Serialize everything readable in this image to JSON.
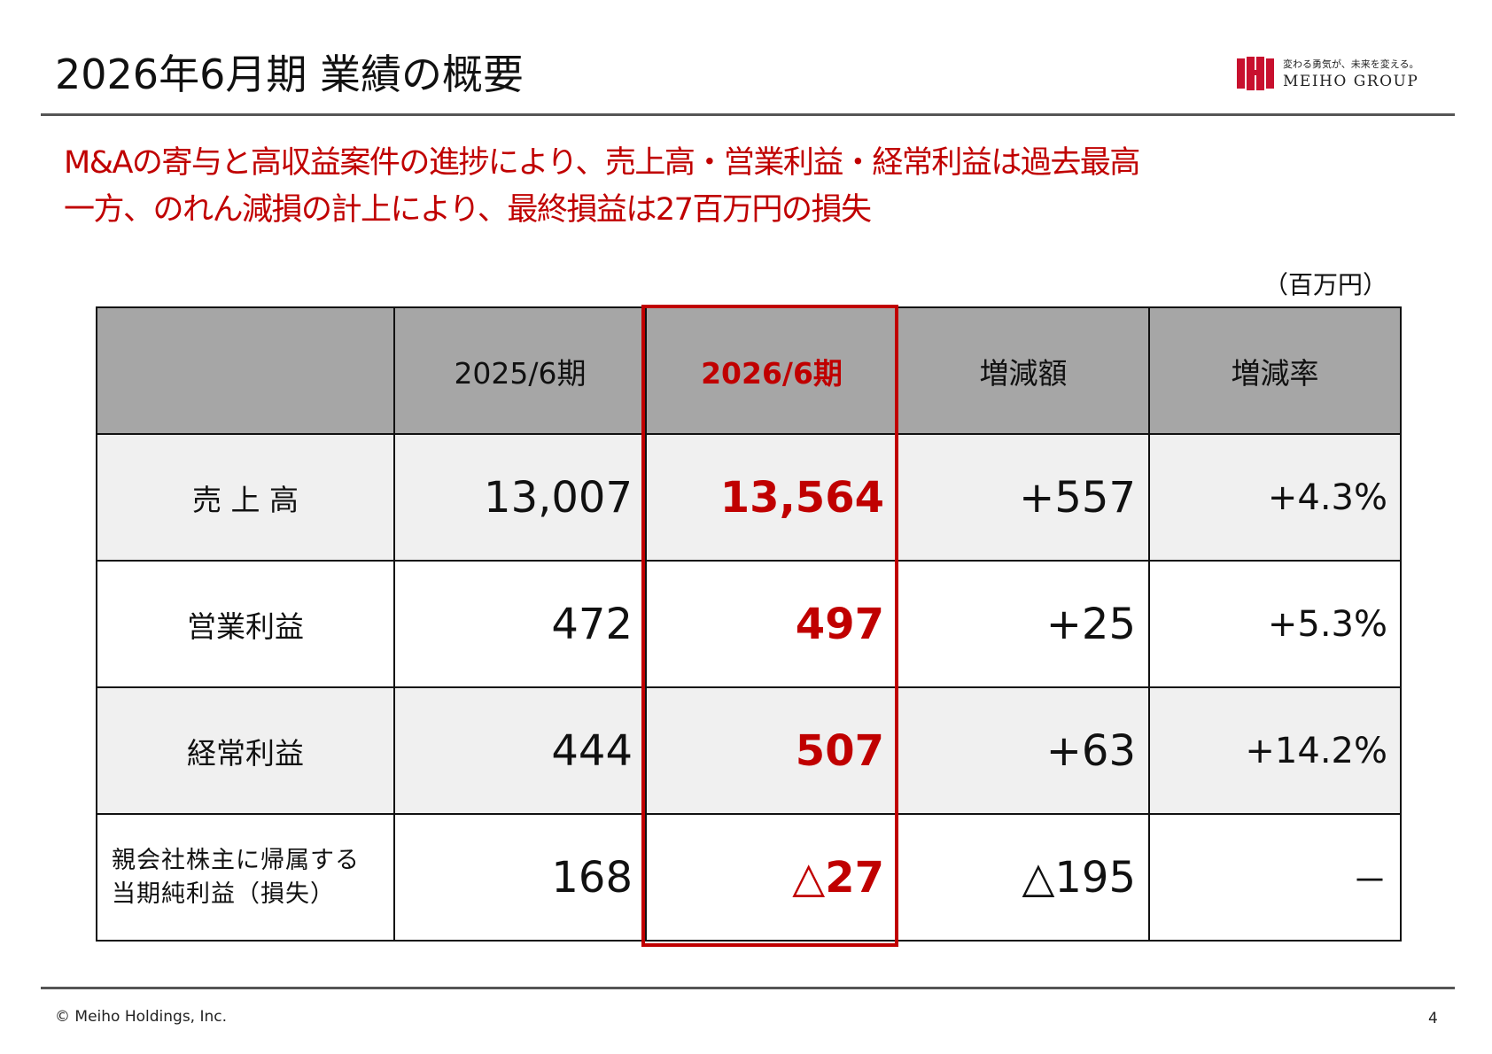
{
  "slide": {
    "title": "2026年6月期 業績の概要",
    "headline_line1": "M&Aの寄与と高収益案件の進捗により、売上高・営業利益・経常利益は過去最高",
    "headline_line2": "一方、のれん減損の計上により、最終損益は27百万円の損失",
    "unit": "（百万円）"
  },
  "logo": {
    "tagline": "変わる勇気が、未来を変える。",
    "name": "MEIHO GROUP",
    "brand_color": "#c8102e"
  },
  "table": {
    "headers": [
      "",
      "2025/6期",
      "2026/6期",
      "増減額",
      "増減率"
    ],
    "rows": [
      {
        "label": "売 上 高",
        "prev": "13,007",
        "cur": "13,564",
        "diff": "+557",
        "rate": "+4.3%"
      },
      {
        "label": "営業利益",
        "prev": "472",
        "cur": "497",
        "diff": "+25",
        "rate": "+5.3%"
      },
      {
        "label": "経常利益",
        "prev": "444",
        "cur": "507",
        "diff": "+63",
        "rate": "+14.2%"
      },
      {
        "label_line1": "親会社株主に帰属する",
        "label_line2": "当期純利益（損失）",
        "prev": "168",
        "cur_symbol": "△",
        "cur_value": "27",
        "diff": "△195",
        "rate": "－"
      }
    ]
  },
  "footer": {
    "copyright": "© Meiho Holdings, Inc.",
    "page": "4"
  },
  "colors": {
    "accent_red": "#c00000",
    "header_gray": "#a6a6a6",
    "row_shade": "#f0f0f0"
  }
}
